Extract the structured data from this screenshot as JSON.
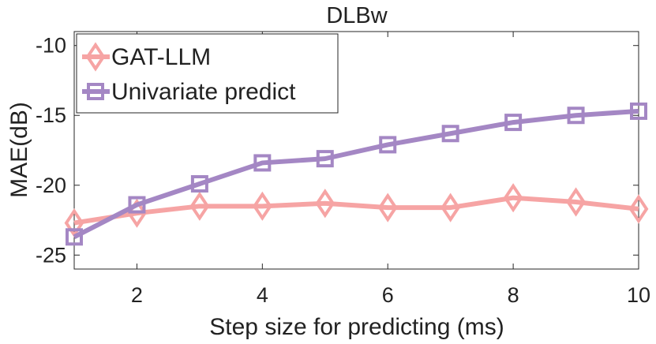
{
  "chart_data": {
    "type": "line",
    "title": "DLBw",
    "xlabel": "Step size for predicting (ms)",
    "ylabel": "MAE(dB)",
    "xlim": [
      1,
      10
    ],
    "ylim": [
      -26,
      -9
    ],
    "xticks": [
      2,
      4,
      6,
      8,
      10
    ],
    "yticks": [
      -10,
      -15,
      -20,
      -25
    ],
    "grid": false,
    "legend_position": "top-left",
    "x": [
      1,
      2,
      3,
      4,
      5,
      6,
      7,
      8,
      9,
      10
    ],
    "series": [
      {
        "name": "GAT-LLM",
        "marker": "diamond",
        "color": "#F6A4A4",
        "values": [
          -22.7,
          -22.0,
          -21.5,
          -21.5,
          -21.3,
          -21.6,
          -21.6,
          -20.9,
          -21.2,
          -21.7
        ]
      },
      {
        "name": "Univariate predict",
        "marker": "square",
        "color": "#A487C4",
        "values": [
          -23.7,
          -21.4,
          -19.9,
          -18.4,
          -18.1,
          -17.1,
          -16.3,
          -15.5,
          -15.0,
          -14.7
        ]
      }
    ]
  }
}
